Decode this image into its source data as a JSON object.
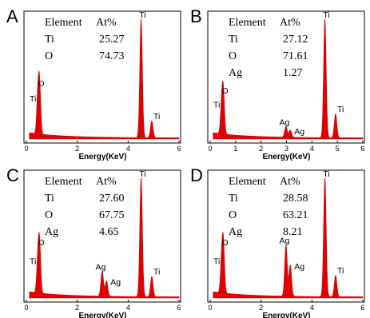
{
  "chart_data": [
    {
      "panel": "A",
      "type": "area",
      "xlabel": "Energy(KeV)",
      "xlim": [
        0,
        6
      ],
      "xticks": [
        "0",
        "2",
        "4",
        "6"
      ],
      "table_header": [
        "Element",
        "At%"
      ],
      "table_rows": [
        [
          "Ti",
          "25.27"
        ],
        [
          "O",
          "74.73"
        ]
      ],
      "peaks": [
        {
          "label": "Ti",
          "x": 0.45,
          "y": 0.3
        },
        {
          "label": "O",
          "x": 0.52,
          "y": 0.4
        },
        {
          "label": "Ti",
          "x": 4.51,
          "y": 1.0
        },
        {
          "label": "Ti",
          "x": 4.93,
          "y": 0.14
        }
      ],
      "color": "#e00000"
    },
    {
      "panel": "B",
      "type": "area",
      "xlabel": "Energy(KeV)",
      "xlim": [
        0,
        6
      ],
      "xticks": [
        "0",
        "1",
        "2",
        "3",
        "4",
        "5",
        "6"
      ],
      "table_header": [
        "Element",
        "At%"
      ],
      "table_rows": [
        [
          "Ti",
          "27.12"
        ],
        [
          "O",
          "71.61"
        ],
        [
          "Ag",
          "1.27"
        ]
      ],
      "peaks": [
        {
          "label": "Ti",
          "x": 0.45,
          "y": 0.25
        },
        {
          "label": "O",
          "x": 0.52,
          "y": 0.34
        },
        {
          "label": "Ag",
          "x": 2.98,
          "y": 0.09
        },
        {
          "label": "Ag",
          "x": 3.15,
          "y": 0.06
        },
        {
          "label": "Ti",
          "x": 4.51,
          "y": 1.0
        },
        {
          "label": "Ti",
          "x": 4.93,
          "y": 0.2
        }
      ],
      "color": "#e00000"
    },
    {
      "panel": "C",
      "type": "area",
      "xlabel": "Energy(KeV)",
      "xlim": [
        0,
        6
      ],
      "xticks": [
        "0",
        "2",
        "4",
        "6"
      ],
      "table_header": [
        "Element",
        "At%"
      ],
      "table_rows": [
        [
          "Ti",
          "27.60"
        ],
        [
          "O",
          "67.75"
        ],
        [
          "Ag",
          "4.65"
        ]
      ],
      "peaks": [
        {
          "label": "Ti",
          "x": 0.45,
          "y": 0.27
        },
        {
          "label": "O",
          "x": 0.52,
          "y": 0.4
        },
        {
          "label": "Ag",
          "x": 2.98,
          "y": 0.21
        },
        {
          "label": "Ag",
          "x": 3.15,
          "y": 0.13
        },
        {
          "label": "Ti",
          "x": 4.51,
          "y": 1.0
        },
        {
          "label": "Ti",
          "x": 4.93,
          "y": 0.17
        }
      ],
      "color": "#e00000"
    },
    {
      "panel": "D",
      "type": "area",
      "xlabel": "Energy(KeV)",
      "xlim": [
        0,
        6
      ],
      "xticks": [
        "0",
        "2",
        "4",
        "6"
      ],
      "table_header": [
        "Element",
        "At%"
      ],
      "table_rows": [
        [
          "Ti",
          "28.58"
        ],
        [
          "O",
          "63.21"
        ],
        [
          "Ag",
          "8.21"
        ]
      ],
      "peaks": [
        {
          "label": "Ti",
          "x": 0.45,
          "y": 0.27
        },
        {
          "label": "O",
          "x": 0.52,
          "y": 0.4
        },
        {
          "label": "Ag",
          "x": 2.98,
          "y": 0.43
        },
        {
          "label": "Ag",
          "x": 3.15,
          "y": 0.26
        },
        {
          "label": "Ti",
          "x": 4.51,
          "y": 1.0
        },
        {
          "label": "Ti",
          "x": 4.93,
          "y": 0.18
        }
      ],
      "color": "#e00000"
    }
  ]
}
